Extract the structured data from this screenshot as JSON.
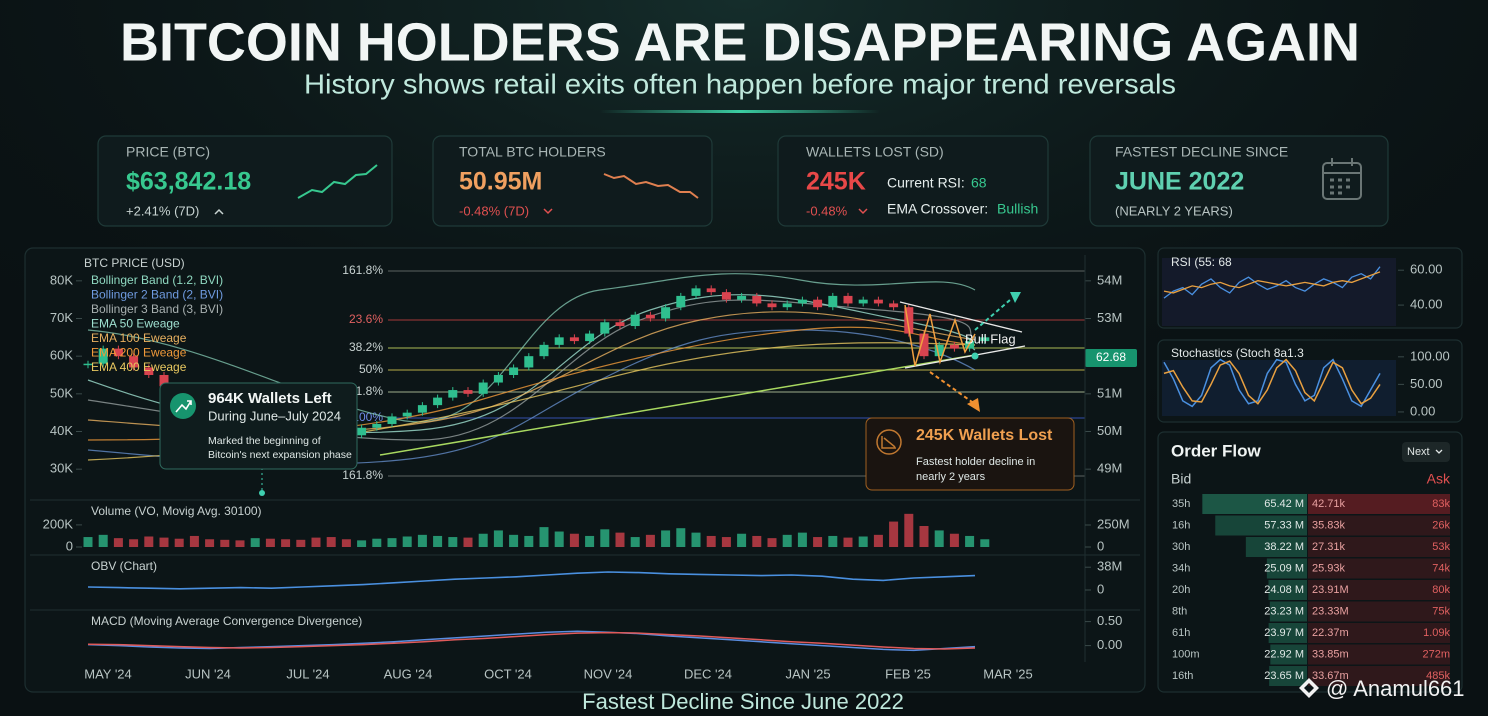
{
  "header": {
    "title": "BITCOIN HOLDERS ARE DISAPPEARING AGAIN",
    "subtitle": "History shows retail exits often happen before major trend reversals"
  },
  "cards": [
    {
      "label": "PRICE (BTC)",
      "value": "$63,842.18",
      "change": "+2.41% (7D)"
    },
    {
      "label": "TOTAL BTC HOLDERS",
      "value": "50.95M",
      "change": "-0.48% (7D)"
    },
    {
      "label": "WALLETS LOST (SD)",
      "value": "245K",
      "change": "-0.48%",
      "rsi_label": "Current RSI:",
      "rsi_value": "68",
      "ema_label": "EMA Crossover:",
      "ema_value": "Bullish"
    },
    {
      "label": "FASTEST DECLINE SINCE",
      "value": "JUNE 2022",
      "change": "(NEARLY 2 YEARS)"
    }
  ],
  "chart_data": [
    {
      "type": "candlestick",
      "title": "BTC PRICE (USD)",
      "x_axis_labels": [
        "MAY '24",
        "JUN '24",
        "JUL '24",
        "AUG '24",
        "OCT '24",
        "NOV '24",
        "DEC '24",
        "JAN '25",
        "FEB '25",
        "MAR '25"
      ],
      "values": [
        58000,
        62000,
        60000,
        57000,
        55000,
        52000,
        50000,
        48000,
        47000,
        45000,
        44000,
        46000,
        44000,
        43000,
        42000,
        41000,
        40000,
        39000,
        41000,
        42000,
        44000,
        45000,
        47000,
        49000,
        51000,
        50000,
        53000,
        55000,
        57000,
        60000,
        63000,
        65000,
        64000,
        66000,
        69000,
        68000,
        71000,
        70000,
        73000,
        76000,
        78000,
        77000,
        75000,
        76000,
        74000,
        73000,
        74000,
        75000,
        73000,
        76000,
        74000,
        75000,
        74000,
        73000,
        66000,
        60000,
        63000,
        62000,
        64000,
        65000
      ],
      "up_color": "#2fbf8f",
      "down_color": "#d9434f",
      "ylim": [
        25000,
        85000
      ],
      "yticks": [
        {
          "value": 30000,
          "label": "30K"
        },
        {
          "value": 40000,
          "label": "40K"
        },
        {
          "value": 50000,
          "label": "50K"
        },
        {
          "value": 60000,
          "label": "60K"
        },
        {
          "value": 70000,
          "label": "70K"
        },
        {
          "value": 80000,
          "label": "80K"
        }
      ],
      "y2lim": [
        48500000,
        54500000
      ],
      "y2ticks": [
        {
          "value": 49000000,
          "label": "49M"
        },
        {
          "value": 50000000,
          "label": "50M"
        },
        {
          "value": 51000000,
          "label": "51M"
        },
        {
          "value": 53000000,
          "label": "53M"
        },
        {
          "value": 54000000,
          "label": "54M"
        }
      ],
      "overlays": [
        {
          "name": "Bollinger Band (1.2, BVI)",
          "color": "#8fd8c0"
        },
        {
          "name": "Bollinger 2 Band (2, BVI)",
          "color": "#6f9be0"
        },
        {
          "name": "Bollinger 3 Band (3, BVI)",
          "color": "#a8b0b0"
        },
        {
          "name": "EMA 50 Eweage",
          "color": "#9fe0d0"
        },
        {
          "name": "EMA 100 Eweage",
          "color": "#e8b060"
        },
        {
          "name": "EMA 200 Eweage",
          "color": "#f09a3a"
        },
        {
          "name": "EMA 400 Eweage",
          "color": "#e8c860"
        }
      ],
      "fib_levels": [
        "161.8%",
        "23.6%",
        "38.2%",
        "50%",
        "61.8%",
        "100%",
        "161.8%"
      ],
      "tag": "62.68",
      "pattern_label": "Bull Flag",
      "annotations": [
        {
          "title": "964K Wallets Left",
          "subtitle": "During June–July 2024",
          "text": [
            "Marked the beginning of",
            "Bitcoin's next expansion phase"
          ]
        },
        {
          "title": "245K Wallets Lost",
          "text": [
            "Fastest holder decline in",
            "nearly 2 years"
          ]
        }
      ]
    },
    {
      "type": "bar",
      "title": "Volume (VO, Movig Avg. 30100)",
      "values": [
        90000,
        110000,
        80000,
        70000,
        95000,
        85000,
        75000,
        100000,
        70000,
        65000,
        60000,
        80000,
        75000,
        70000,
        65000,
        85000,
        90000,
        70000,
        60000,
        75000,
        80000,
        95000,
        110000,
        100000,
        90000,
        85000,
        120000,
        150000,
        110000,
        100000,
        180000,
        140000,
        120000,
        100000,
        160000,
        130000,
        90000,
        110000,
        150000,
        170000,
        130000,
        100000,
        90000,
        120000,
        100000,
        80000,
        110000,
        130000,
        90000,
        100000,
        85000,
        95000,
        110000,
        230000,
        300000,
        190000,
        150000,
        120000,
        100000,
        70000
      ],
      "ylim": [
        0,
        380000
      ],
      "yticks": [
        0,
        {
          "value": 200000,
          "label": "200K"
        }
      ],
      "y2lim": [
        0,
        477000000
      ],
      "y2ticks": [
        0,
        {
          "value": 250000000,
          "label": "250M"
        }
      ]
    },
    {
      "type": "line",
      "title": "OBV (Chart)",
      "color": "#4a90e0",
      "values": [
        5000000,
        4000000,
        3000000,
        2000000,
        3000000,
        4000000,
        3000000,
        5000000,
        7000000,
        9000000,
        12000000,
        15000000,
        18000000,
        20000000,
        22000000,
        25000000,
        28000000,
        30000000,
        29000000,
        27000000,
        26000000,
        25000000,
        24000000,
        25000000,
        23000000,
        18000000,
        16000000,
        20000000,
        22000000,
        24000000
      ],
      "ylim": [
        -25000000,
        50000000
      ],
      "y2ticks": [
        0,
        {
          "value": 38000000,
          "label": "38M"
        }
      ]
    },
    {
      "type": "line",
      "title": "MACD (Moving Average Convergence Divergence)",
      "series": [
        {
          "name": "MACD",
          "color": "#5a8de0",
          "values": [
            0.02,
            0,
            -0.03,
            -0.05,
            -0.06,
            -0.04,
            -0.02,
            0,
            0.02,
            0.05,
            0.08,
            0.12,
            0.16,
            0.2,
            0.24,
            0.28,
            0.3,
            0.28,
            0.25,
            0.2,
            0.16,
            0.12,
            0.08,
            0.04,
            0,
            -0.04,
            -0.08,
            -0.1,
            -0.06,
            -0.02
          ]
        },
        {
          "name": "Signal",
          "color": "#e05a5a",
          "values": [
            0.03,
            0.02,
            0,
            -0.02,
            -0.04,
            -0.05,
            -0.04,
            -0.02,
            0,
            0.02,
            0.05,
            0.08,
            0.12,
            0.15,
            0.19,
            0.23,
            0.26,
            0.27,
            0.26,
            0.23,
            0.2,
            0.16,
            0.12,
            0.08,
            0.05,
            0.01,
            -0.03,
            -0.06,
            -0.07,
            -0.05
          ]
        }
      ],
      "ylim": [
        -0.3,
        0.7
      ],
      "y2ticks": [
        {
          "value": 0,
          "label": "0.00"
        },
        {
          "value": 0.5,
          "label": "0.50"
        }
      ]
    },
    {
      "type": "line",
      "title": "RSI (55: 68",
      "series": [
        {
          "name": "RSI",
          "color": "#4a90e0",
          "values": [
            44,
            48,
            50,
            46,
            52,
            55,
            50,
            47,
            53,
            56,
            52,
            49,
            51,
            54,
            50,
            48,
            52,
            55,
            53,
            50,
            56,
            58,
            55,
            62
          ]
        },
        {
          "name": "RSI MA",
          "color": "#e8a040",
          "values": [
            48,
            47,
            49,
            51,
            50,
            52,
            53,
            51,
            50,
            52,
            54,
            53,
            52,
            51,
            52,
            53,
            52,
            51,
            53,
            54,
            53,
            55,
            57,
            59
          ]
        }
      ],
      "ylim": [
        28,
        67
      ],
      "yticks": [
        {
          "value": 40,
          "label": "40.00"
        },
        {
          "value": 60,
          "label": "60.00"
        }
      ]
    },
    {
      "type": "line",
      "title": "Stochastics (Stoch 8a1.3",
      "series": [
        {
          "name": "%K",
          "color": "#4a90e0",
          "values": [
            90,
            60,
            20,
            10,
            30,
            80,
            95,
            85,
            40,
            15,
            20,
            70,
            95,
            90,
            50,
            20,
            30,
            80,
            95,
            60,
            20,
            10,
            40,
            70
          ]
        },
        {
          "name": "%D",
          "color": "#e8a040",
          "values": [
            70,
            75,
            45,
            20,
            18,
            50,
            85,
            92,
            70,
            30,
            15,
            40,
            80,
            95,
            75,
            35,
            20,
            55,
            90,
            80,
            40,
            15,
            25,
            50
          ]
        }
      ],
      "ylim": [
        -11,
        116
      ],
      "yticks": [
        {
          "value": 0,
          "label": "0.00"
        },
        {
          "value": 50,
          "label": "50.00"
        },
        {
          "value": 100,
          "label": "100.00"
        }
      ]
    }
  ],
  "order_flow": {
    "title": "Order Flow",
    "next": "Next",
    "bid_header": "Bid",
    "ask_header": "Ask",
    "rows": [
      {
        "label": "35h",
        "bid": 65.42,
        "bid_label": "65.42 M",
        "ask_volume": "42.71k",
        "ask": "83k"
      },
      {
        "label": "16h",
        "bid": 57.33,
        "bid_label": "57.33 M",
        "ask_volume": "35.83k",
        "ask": "26k"
      },
      {
        "label": "30h",
        "bid": 38.22,
        "bid_label": "38.22 M",
        "ask_volume": "27.31k",
        "ask": "53k"
      },
      {
        "label": "34h",
        "bid": 25.09,
        "bid_label": "25.09 M",
        "ask_volume": "25.93k",
        "ask": "74k"
      },
      {
        "label": "20h",
        "bid": 24.08,
        "bid_label": "24.08 M",
        "ask_volume": "23.91M",
        "ask": "80k"
      },
      {
        "label": "8th",
        "bid": 23.23,
        "bid_label": "23.23 M",
        "ask_volume": "23.33M",
        "ask": "75k"
      },
      {
        "label": "61h",
        "bid": 23.97,
        "bid_label": "23.97 M",
        "ask_volume": "22.37m",
        "ask": "1.09k"
      },
      {
        "label": "100m",
        "bid": 22.92,
        "bid_label": "22.92 M",
        "ask_volume": "33.85m",
        "ask": "272m"
      },
      {
        "label": "16th",
        "bid": 23.65,
        "bid_label": "23.65 M",
        "ask_volume": "33.67m",
        "ask": "485k"
      }
    ]
  },
  "caption": "Fastest Decline Since June 2022",
  "watermark": "@ Anamul661"
}
